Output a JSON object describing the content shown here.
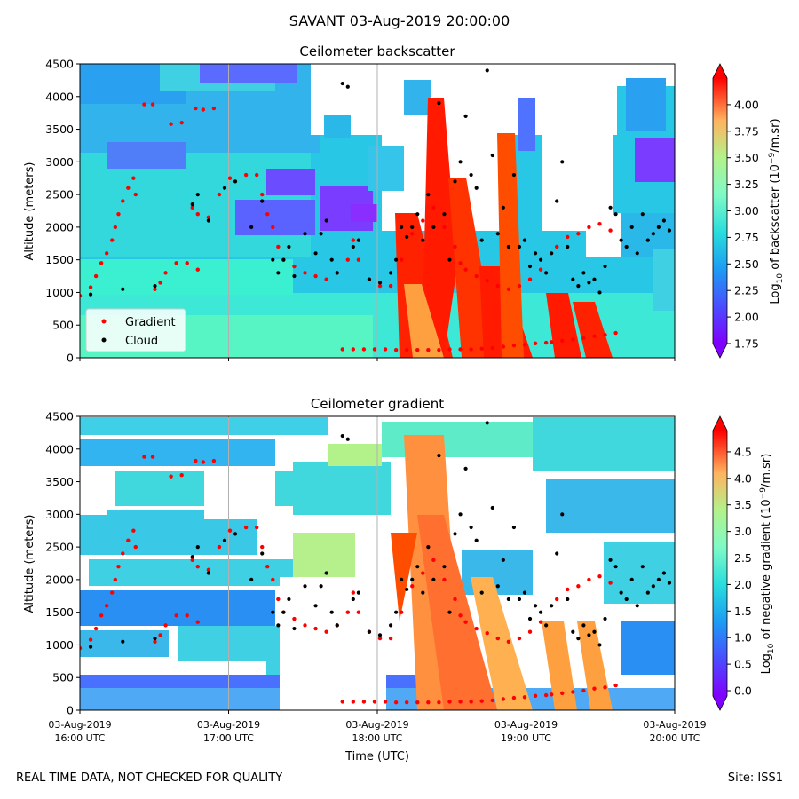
{
  "figure_title": "SAVANT 03-Aug-2019 20:00:00",
  "footer": {
    "left": "REAL TIME DATA, NOT CHECKED FOR QUALITY",
    "right": "Site: ISS1"
  },
  "chart_data": [
    {
      "type": "heatmap",
      "title": "Ceilometer backscatter",
      "xlabel": "",
      "ylabel": "Altitude (meters)",
      "ylim": [
        0,
        4500
      ],
      "yticks": [
        "0",
        "500",
        "1000",
        "1500",
        "2000",
        "2500",
        "3000",
        "3500",
        "4000",
        "4500"
      ],
      "xlim": [
        "03-Aug-2019 16:00 UTC",
        "03-Aug-2019 20:00 UTC"
      ],
      "colorbar": {
        "label_main": "Log",
        "label_sub": "10",
        "label_rest": " of backscatter (10",
        "label_exp": "−9",
        "label_end": "/m.sr)",
        "range": [
          1.75,
          4.25
        ],
        "ticks": [
          "1.75",
          "2.00",
          "2.25",
          "2.50",
          "2.75",
          "3.00",
          "3.25",
          "3.50",
          "3.75",
          "4.00"
        ],
        "colormap": "rainbow"
      },
      "legend": {
        "placement": "lower-left",
        "entries": [
          {
            "label": "Gradient",
            "color": "#ff0000"
          },
          {
            "label": "Cloud",
            "color": "#000000"
          }
        ]
      }
    },
    {
      "type": "heatmap",
      "title": "Ceilometer gradient",
      "xlabel": "Time (UTC)",
      "ylabel": "Altitude (meters)",
      "ylim": [
        0,
        4500
      ],
      "yticks": [
        "0",
        "500",
        "1000",
        "1500",
        "2000",
        "2500",
        "3000",
        "3500",
        "4000",
        "4500"
      ],
      "xticks": [
        {
          "date": "03-Aug-2019",
          "time": "16:00 UTC"
        },
        {
          "date": "03-Aug-2019",
          "time": "17:00 UTC"
        },
        {
          "date": "03-Aug-2019",
          "time": "18:00 UTC"
        },
        {
          "date": "03-Aug-2019",
          "time": "19:00 UTC"
        },
        {
          "date": "03-Aug-2019",
          "time": "20:00 UTC"
        }
      ],
      "colorbar": {
        "label_main": "Log",
        "label_sub": "10",
        "label_rest": " of negative gradient (10",
        "label_exp": "−9",
        "label_end": "/m.sr)",
        "range": [
          -0.1,
          4.9
        ],
        "ticks": [
          "0.0",
          "0.5",
          "1.0",
          "1.5",
          "2.0",
          "2.5",
          "3.0",
          "3.5",
          "4.0",
          "4.5"
        ],
        "colormap": "rainbow"
      }
    }
  ],
  "series": {
    "gradient_points": [
      [
        0.0,
        950
      ],
      [
        0.1,
        1080
      ],
      [
        0.15,
        1250
      ],
      [
        0.2,
        1450
      ],
      [
        0.25,
        1600
      ],
      [
        0.3,
        1800
      ],
      [
        0.33,
        2000
      ],
      [
        0.36,
        2200
      ],
      [
        0.4,
        2400
      ],
      [
        0.45,
        2600
      ],
      [
        0.5,
        2750
      ],
      [
        0.52,
        2500
      ],
      [
        0.6,
        3880
      ],
      [
        0.68,
        3880
      ],
      [
        0.7,
        1050
      ],
      [
        0.75,
        1150
      ],
      [
        0.8,
        1300
      ],
      [
        0.9,
        1450
      ],
      [
        1.0,
        1450
      ],
      [
        1.1,
        1350
      ],
      [
        0.85,
        3580
      ],
      [
        0.95,
        3600
      ],
      [
        1.05,
        2300
      ],
      [
        1.1,
        2200
      ],
      [
        1.2,
        2150
      ],
      [
        1.3,
        2500
      ],
      [
        1.4,
        2750
      ],
      [
        1.55,
        2800
      ],
      [
        1.65,
        2800
      ],
      [
        1.08,
        3820
      ],
      [
        1.15,
        3800
      ],
      [
        1.25,
        3820
      ],
      [
        1.7,
        2500
      ],
      [
        1.75,
        2200
      ],
      [
        1.8,
        2000
      ],
      [
        1.85,
        1700
      ],
      [
        1.9,
        1500
      ],
      [
        2.0,
        1400
      ],
      [
        2.1,
        1300
      ],
      [
        2.2,
        1250
      ],
      [
        2.3,
        1200
      ],
      [
        2.4,
        1300
      ],
      [
        2.5,
        1500
      ],
      [
        2.55,
        1800
      ],
      [
        2.6,
        1500
      ],
      [
        2.7,
        1200
      ],
      [
        2.8,
        1100
      ],
      [
        2.9,
        1100
      ],
      [
        3.0,
        1500
      ],
      [
        3.1,
        1900
      ],
      [
        3.2,
        2100
      ],
      [
        3.3,
        2300
      ],
      [
        3.4,
        2000
      ],
      [
        3.5,
        1700
      ],
      [
        3.55,
        1450
      ],
      [
        3.6,
        1350
      ],
      [
        3.7,
        1250
      ],
      [
        3.8,
        1180
      ],
      [
        3.9,
        1100
      ],
      [
        4.0,
        1050
      ],
      [
        4.1,
        1100
      ],
      [
        4.2,
        1200
      ],
      [
        4.3,
        1350
      ],
      [
        4.45,
        1700
      ],
      [
        4.55,
        1850
      ],
      [
        4.65,
        1900
      ],
      [
        4.75,
        2000
      ],
      [
        4.85,
        2050
      ],
      [
        4.95,
        1950
      ],
      [
        2.45,
        130
      ],
      [
        2.55,
        130
      ],
      [
        2.65,
        130
      ],
      [
        2.75,
        130
      ],
      [
        2.85,
        130
      ],
      [
        2.95,
        120
      ],
      [
        3.05,
        120
      ],
      [
        3.15,
        120
      ],
      [
        3.25,
        120
      ],
      [
        3.35,
        120
      ],
      [
        3.45,
        130
      ],
      [
        3.55,
        130
      ],
      [
        3.65,
        130
      ],
      [
        3.75,
        140
      ],
      [
        3.85,
        150
      ],
      [
        3.95,
        170
      ],
      [
        4.05,
        190
      ],
      [
        4.15,
        200
      ],
      [
        4.25,
        220
      ],
      [
        4.35,
        230
      ],
      [
        4.4,
        240
      ],
      [
        4.5,
        260
      ],
      [
        4.6,
        280
      ],
      [
        4.7,
        300
      ],
      [
        4.8,
        330
      ],
      [
        4.9,
        350
      ],
      [
        5.0,
        380
      ]
    ],
    "cloud_points": [
      [
        0.1,
        970
      ],
      [
        0.4,
        1050
      ],
      [
        0.7,
        1100
      ],
      [
        1.05,
        2350
      ],
      [
        1.1,
        2500
      ],
      [
        1.2,
        2100
      ],
      [
        1.35,
        2600
      ],
      [
        1.45,
        2700
      ],
      [
        1.6,
        2000
      ],
      [
        1.7,
        2400
      ],
      [
        1.8,
        1500
      ],
      [
        1.85,
        1300
      ],
      [
        1.9,
        1500
      ],
      [
        1.95,
        1700
      ],
      [
        2.0,
        1250
      ],
      [
        2.1,
        1900
      ],
      [
        2.2,
        1600
      ],
      [
        2.25,
        1900
      ],
      [
        2.3,
        2100
      ],
      [
        2.35,
        1500
      ],
      [
        2.4,
        1300
      ],
      [
        2.45,
        4200
      ],
      [
        2.5,
        4150
      ],
      [
        2.55,
        1700
      ],
      [
        2.6,
        1800
      ],
      [
        2.7,
        1200
      ],
      [
        2.8,
        1150
      ],
      [
        2.9,
        1300
      ],
      [
        2.95,
        1500
      ],
      [
        3.0,
        2000
      ],
      [
        3.05,
        1850
      ],
      [
        3.1,
        2000
      ],
      [
        3.15,
        2200
      ],
      [
        3.2,
        1800
      ],
      [
        3.25,
        2500
      ],
      [
        3.3,
        2000
      ],
      [
        3.35,
        3900
      ],
      [
        3.4,
        2200
      ],
      [
        3.45,
        1500
      ],
      [
        3.5,
        2700
      ],
      [
        3.55,
        3000
      ],
      [
        3.6,
        3700
      ],
      [
        3.65,
        2800
      ],
      [
        3.7,
        2600
      ],
      [
        3.75,
        1800
      ],
      [
        3.8,
        4400
      ],
      [
        3.85,
        3100
      ],
      [
        3.9,
        1900
      ],
      [
        3.95,
        2300
      ],
      [
        4.0,
        1700
      ],
      [
        4.05,
        2800
      ],
      [
        4.1,
        1700
      ],
      [
        4.15,
        1800
      ],
      [
        4.2,
        1400
      ],
      [
        4.25,
        1600
      ],
      [
        4.3,
        1500
      ],
      [
        4.35,
        1300
      ],
      [
        4.4,
        1600
      ],
      [
        4.45,
        2400
      ],
      [
        4.5,
        3000
      ],
      [
        4.55,
        1700
      ],
      [
        4.6,
        1200
      ],
      [
        4.65,
        1100
      ],
      [
        4.7,
        1300
      ],
      [
        4.75,
        1150
      ],
      [
        4.8,
        1200
      ],
      [
        4.85,
        1000
      ],
      [
        4.9,
        1400
      ],
      [
        4.95,
        2300
      ],
      [
        5.0,
        2200
      ],
      [
        5.05,
        1800
      ],
      [
        5.1,
        1700
      ],
      [
        5.15,
        2000
      ],
      [
        5.2,
        1600
      ],
      [
        5.25,
        2200
      ],
      [
        5.3,
        1800
      ],
      [
        5.35,
        1900
      ],
      [
        5.4,
        2000
      ],
      [
        5.45,
        2100
      ],
      [
        5.5,
        1950
      ]
    ]
  }
}
